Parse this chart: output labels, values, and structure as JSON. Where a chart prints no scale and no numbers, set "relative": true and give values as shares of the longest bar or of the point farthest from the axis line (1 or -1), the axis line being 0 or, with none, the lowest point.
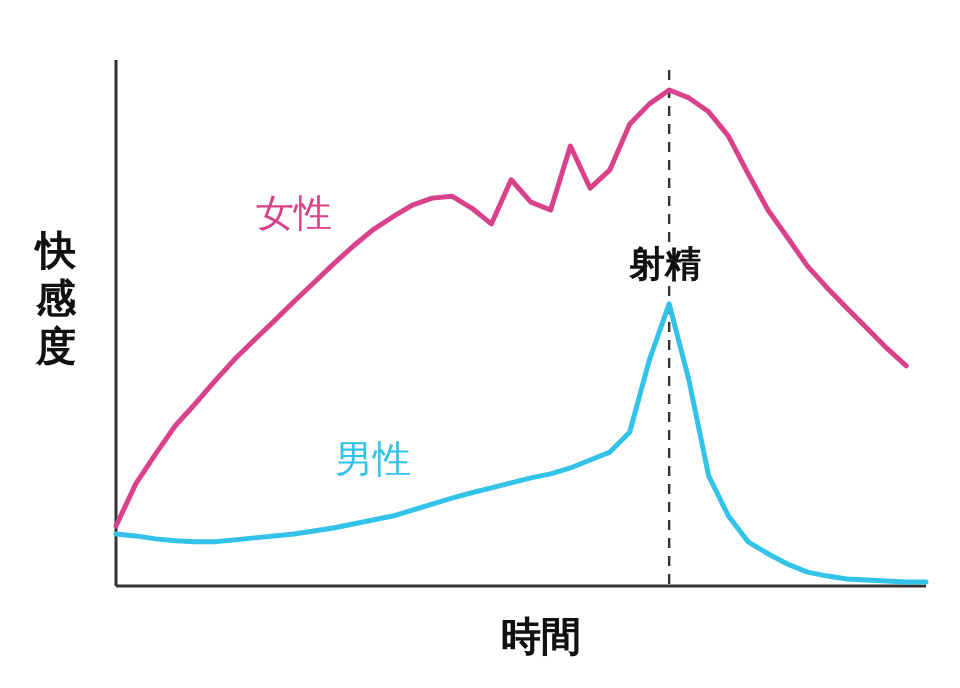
{
  "chart_data": {
    "type": "line",
    "relative": true,
    "xlabel": "時間",
    "ylabel": "快感度",
    "categories": [
      null,
      null,
      null,
      null,
      null,
      null,
      null,
      null,
      null,
      null,
      null,
      null,
      null,
      null,
      null,
      null,
      null,
      null,
      null,
      null,
      null,
      null,
      null,
      null,
      null,
      null,
      null,
      null,
      null,
      null,
      null,
      null,
      null,
      null,
      null,
      null,
      null,
      null,
      null,
      null,
      null,
      null
    ],
    "series": [
      {
        "name": "女性",
        "color": "#d9428a",
        "values": [
          0.121,
          0.206,
          0.266,
          0.323,
          0.367,
          0.413,
          0.457,
          0.496,
          0.534,
          0.573,
          0.611,
          0.649,
          0.685,
          0.718,
          0.744,
          0.768,
          0.782,
          0.786,
          0.762,
          0.73,
          0.819,
          0.774,
          0.758,
          0.887,
          0.802,
          0.839,
          0.931,
          0.972,
          1,
          0.984,
          0.956,
          0.907,
          0.831,
          0.758,
          0.702,
          0.645,
          0.601,
          0.56,
          0.52,
          0.48,
          0.444,
          null
        ]
      },
      {
        "name": "男性",
        "color": "#33c3e8",
        "values": [
          0.105,
          0.101,
          0.095,
          0.091,
          0.089,
          0.089,
          0.093,
          0.097,
          0.101,
          0.105,
          0.111,
          0.117,
          0.125,
          0.133,
          0.141,
          0.153,
          0.165,
          0.177,
          0.188,
          0.198,
          0.208,
          0.218,
          0.226,
          0.238,
          0.254,
          0.27,
          0.31,
          0.456,
          0.569,
          0.415,
          0.222,
          0.141,
          0.089,
          0.065,
          0.044,
          0.028,
          0.02,
          0.014,
          0.012,
          0.01,
          0.008,
          0.008
        ]
      }
    ],
    "annotations": [
      "射精"
    ],
    "grid": false,
    "legend": false,
    "marker": "none",
    "line_style": "solid"
  }
}
